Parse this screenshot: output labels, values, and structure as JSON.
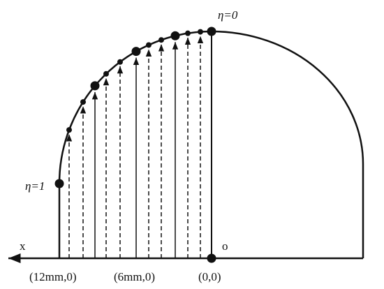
{
  "labels": {
    "eta_top": "η=0",
    "eta_left": "η=1",
    "x_axis": "x",
    "origin": "o",
    "coord_12": "(12mm,0)",
    "coord_6": "(6mm,0)",
    "coord_0": "(0,0)"
  }
}
